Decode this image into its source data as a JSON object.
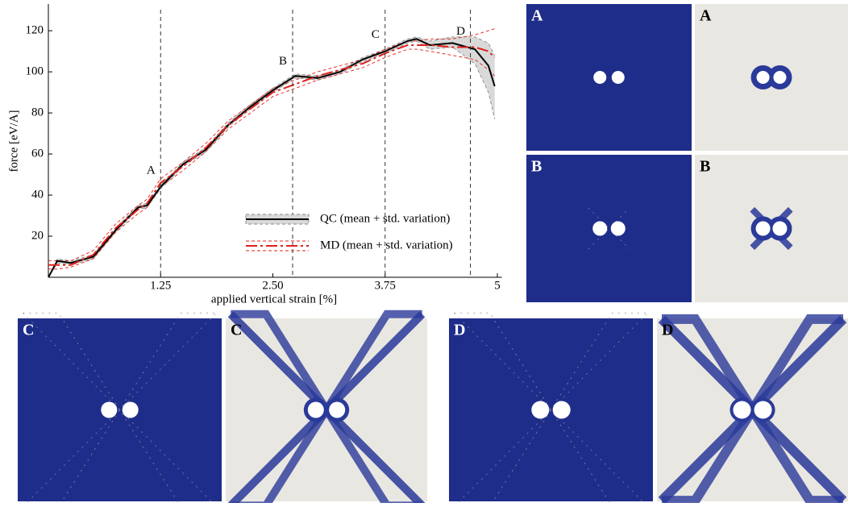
{
  "chart_data": {
    "type": "line",
    "xlabel": "applied vertical strain [%]",
    "ylabel": "force [eV/A]",
    "x": [
      0,
      0.1,
      0.25,
      0.5,
      0.75,
      1.0,
      1.1,
      1.25,
      1.5,
      1.75,
      2.0,
      2.25,
      2.5,
      2.75,
      3.0,
      3.25,
      3.5,
      3.75,
      4.0,
      4.1,
      4.25,
      4.5,
      4.75,
      4.9,
      4.97
    ],
    "series": [
      {
        "name": "QC (mean + std. variation)",
        "color": "#000000",
        "band_color": "#d9d9d9",
        "style": "solid",
        "values": [
          0,
          8,
          7,
          10,
          23,
          34,
          35,
          44,
          55,
          62,
          74,
          83,
          91,
          98,
          97,
          100,
          106,
          110,
          115,
          116,
          113,
          114,
          111,
          103,
          93
        ],
        "lower": [
          0,
          7,
          6,
          9,
          22,
          33,
          34,
          43,
          54,
          61,
          73,
          82,
          90,
          97,
          96,
          99,
          105,
          109,
          114,
          115,
          111,
          112,
          104,
          90,
          77
        ],
        "upper": [
          0,
          9,
          8,
          11,
          24,
          35,
          36,
          45,
          56,
          63,
          75,
          84,
          92,
          99,
          98,
          101,
          107,
          111,
          116,
          117,
          115,
          117,
          117,
          114,
          108
        ]
      },
      {
        "name": "MD (mean + std. variation)",
        "color": "#e0201b",
        "style": "dashed",
        "values": [
          6,
          6,
          6,
          11,
          24,
          33,
          36,
          46,
          54,
          63,
          74,
          82,
          90,
          94,
          98,
          101,
          104,
          109,
          113,
          113,
          113,
          112,
          112,
          110,
          107
        ],
        "lower": [
          4,
          4,
          5,
          9,
          22,
          31,
          34,
          44,
          52,
          61,
          72,
          80,
          88,
          92,
          96,
          99,
          102,
          107,
          111,
          111,
          110,
          108,
          106,
          101,
          98
        ],
        "upper": [
          8,
          8,
          8,
          13,
          26,
          35,
          38,
          48,
          56,
          65,
          76,
          84,
          92,
          96,
          100,
          103,
          106,
          111,
          115,
          115,
          116,
          116,
          118,
          120,
          121
        ]
      }
    ],
    "markers": [
      {
        "x": 1.25,
        "label": "A"
      },
      {
        "x": 2.72,
        "label": "B"
      },
      {
        "x": 3.75,
        "label": "C"
      },
      {
        "x": 4.7,
        "label": "D"
      }
    ],
    "xlim": [
      0,
      5.05
    ],
    "ylim": [
      0,
      133
    ],
    "xticks": [
      1.25,
      {
        "value": 2.5,
        "label": "2.50"
      },
      3.75,
      5
    ],
    "yticks": [
      20,
      40,
      60,
      80,
      100,
      120
    ],
    "legend": "lower right"
  },
  "panels": [
    "A",
    "A",
    "B",
    "B",
    "C",
    "C",
    "D",
    "D"
  ]
}
